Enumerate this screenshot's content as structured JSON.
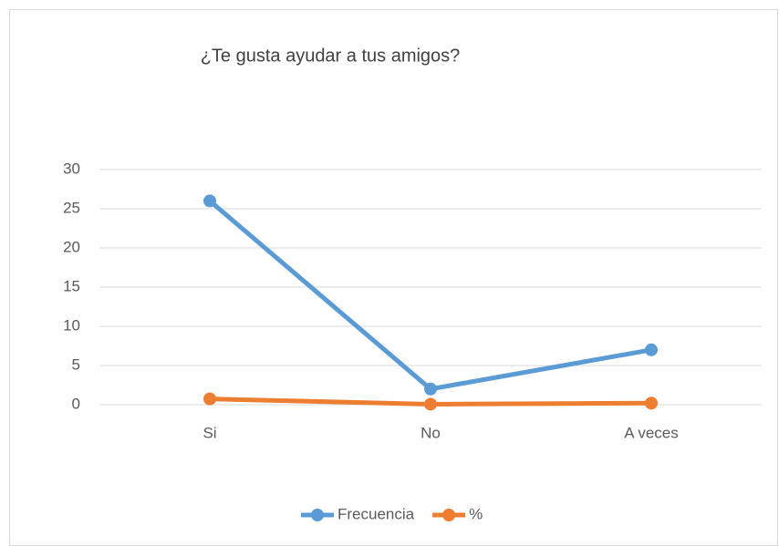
{
  "chart_data": {
    "type": "line",
    "title": "¿Te gusta ayudar a tus amigos?",
    "categories": [
      "Si",
      "No",
      "A veces"
    ],
    "series": [
      {
        "name": "Frecuencia",
        "color": "#5b9bd5",
        "values": [
          26,
          2,
          7
        ]
      },
      {
        "name": "%",
        "color": "#ed7d31",
        "values": [
          0.74,
          0.06,
          0.2
        ]
      }
    ],
    "ylim": [
      0,
      30
    ],
    "yticks": [
      0,
      5,
      10,
      15,
      20,
      25,
      30
    ],
    "grid": true,
    "legend": "bottom"
  }
}
